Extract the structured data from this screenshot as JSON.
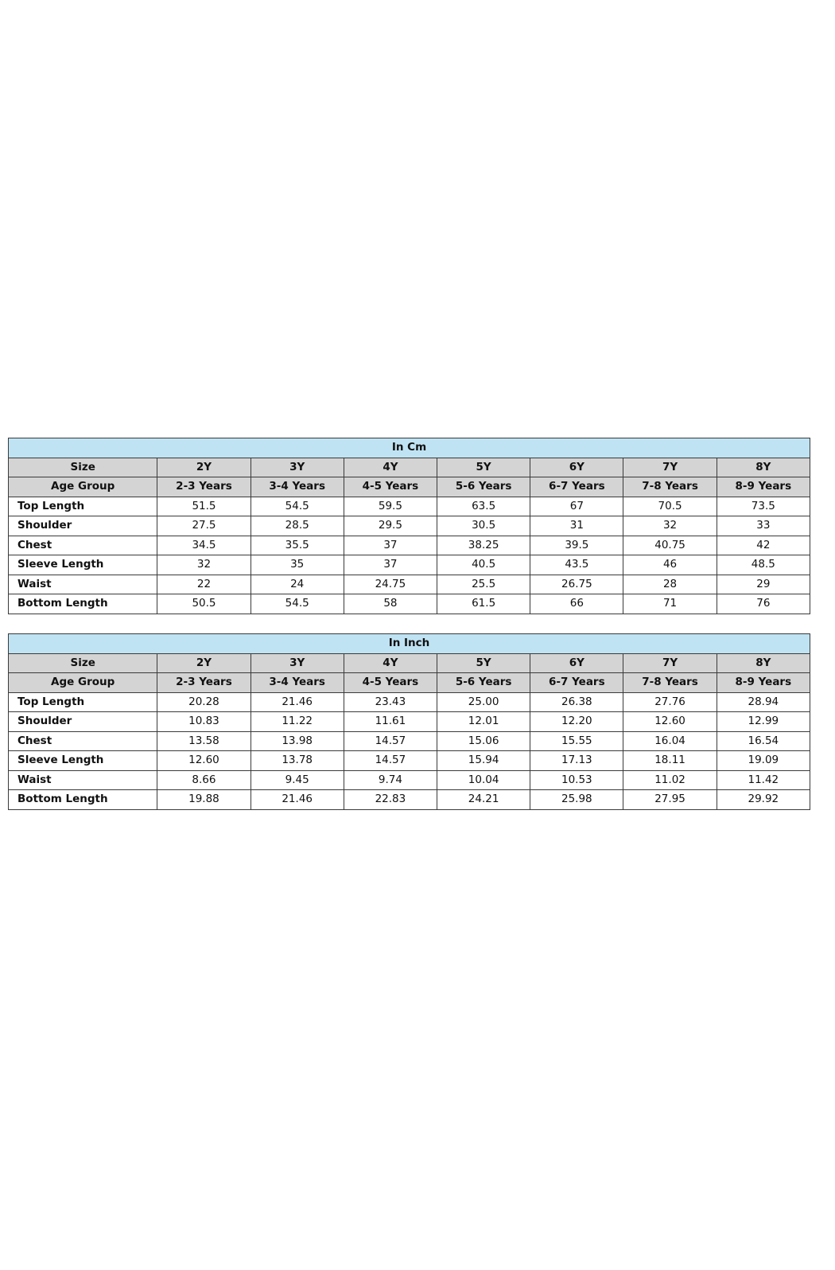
{
  "tables": [
    {
      "title": "In Cm",
      "size_label": "Size",
      "sizes": [
        "2Y",
        "3Y",
        "4Y",
        "5Y",
        "6Y",
        "7Y",
        "8Y"
      ],
      "age_label": "Age Group",
      "ages": [
        "2-3 Years",
        "3-4 Years",
        "4-5 Years",
        "5-6 Years",
        "6-7 Years",
        "7-8 Years",
        "8-9 Years"
      ],
      "rows": [
        {
          "label": "Top Length",
          "values": [
            "51.5",
            "54.5",
            "59.5",
            "63.5",
            "67",
            "70.5",
            "73.5"
          ]
        },
        {
          "label": "Shoulder",
          "values": [
            "27.5",
            "28.5",
            "29.5",
            "30.5",
            "31",
            "32",
            "33"
          ]
        },
        {
          "label": "Chest",
          "values": [
            "34.5",
            "35.5",
            "37",
            "38.25",
            "39.5",
            "40.75",
            "42"
          ]
        },
        {
          "label": "Sleeve Length",
          "values": [
            "32",
            "35",
            "37",
            "40.5",
            "43.5",
            "46",
            "48.5"
          ]
        },
        {
          "label": "Waist",
          "values": [
            "22",
            "24",
            "24.75",
            "25.5",
            "26.75",
            "28",
            "29"
          ]
        },
        {
          "label": "Bottom Length",
          "values": [
            "50.5",
            "54.5",
            "58",
            "61.5",
            "66",
            "71",
            "76"
          ]
        }
      ]
    },
    {
      "title": "In Inch",
      "size_label": "Size",
      "sizes": [
        "2Y",
        "3Y",
        "4Y",
        "5Y",
        "6Y",
        "7Y",
        "8Y"
      ],
      "age_label": "Age Group",
      "ages": [
        "2-3 Years",
        "3-4 Years",
        "4-5 Years",
        "5-6 Years",
        "6-7 Years",
        "7-8 Years",
        "8-9 Years"
      ],
      "rows": [
        {
          "label": "Top Length",
          "values": [
            "20.28",
            "21.46",
            "23.43",
            "25.00",
            "26.38",
            "27.76",
            "28.94"
          ]
        },
        {
          "label": "Shoulder",
          "values": [
            "10.83",
            "11.22",
            "11.61",
            "12.01",
            "12.20",
            "12.60",
            "12.99"
          ]
        },
        {
          "label": "Chest",
          "values": [
            "13.58",
            "13.98",
            "14.57",
            "15.06",
            "15.55",
            "16.04",
            "16.54"
          ]
        },
        {
          "label": "Sleeve Length",
          "values": [
            "12.60",
            "13.78",
            "14.57",
            "15.94",
            "17.13",
            "18.11",
            "19.09"
          ]
        },
        {
          "label": "Waist",
          "values": [
            "8.66",
            "9.45",
            "9.74",
            "10.04",
            "10.53",
            "11.02",
            "11.42"
          ]
        },
        {
          "label": "Bottom Length",
          "values": [
            "19.88",
            "21.46",
            "22.83",
            "24.21",
            "25.98",
            "27.95",
            "29.92"
          ]
        }
      ]
    }
  ],
  "colors": {
    "title_bg": "#bfe3f3",
    "header_bg": "#d4d4d4",
    "border": "#3a3a3a"
  }
}
